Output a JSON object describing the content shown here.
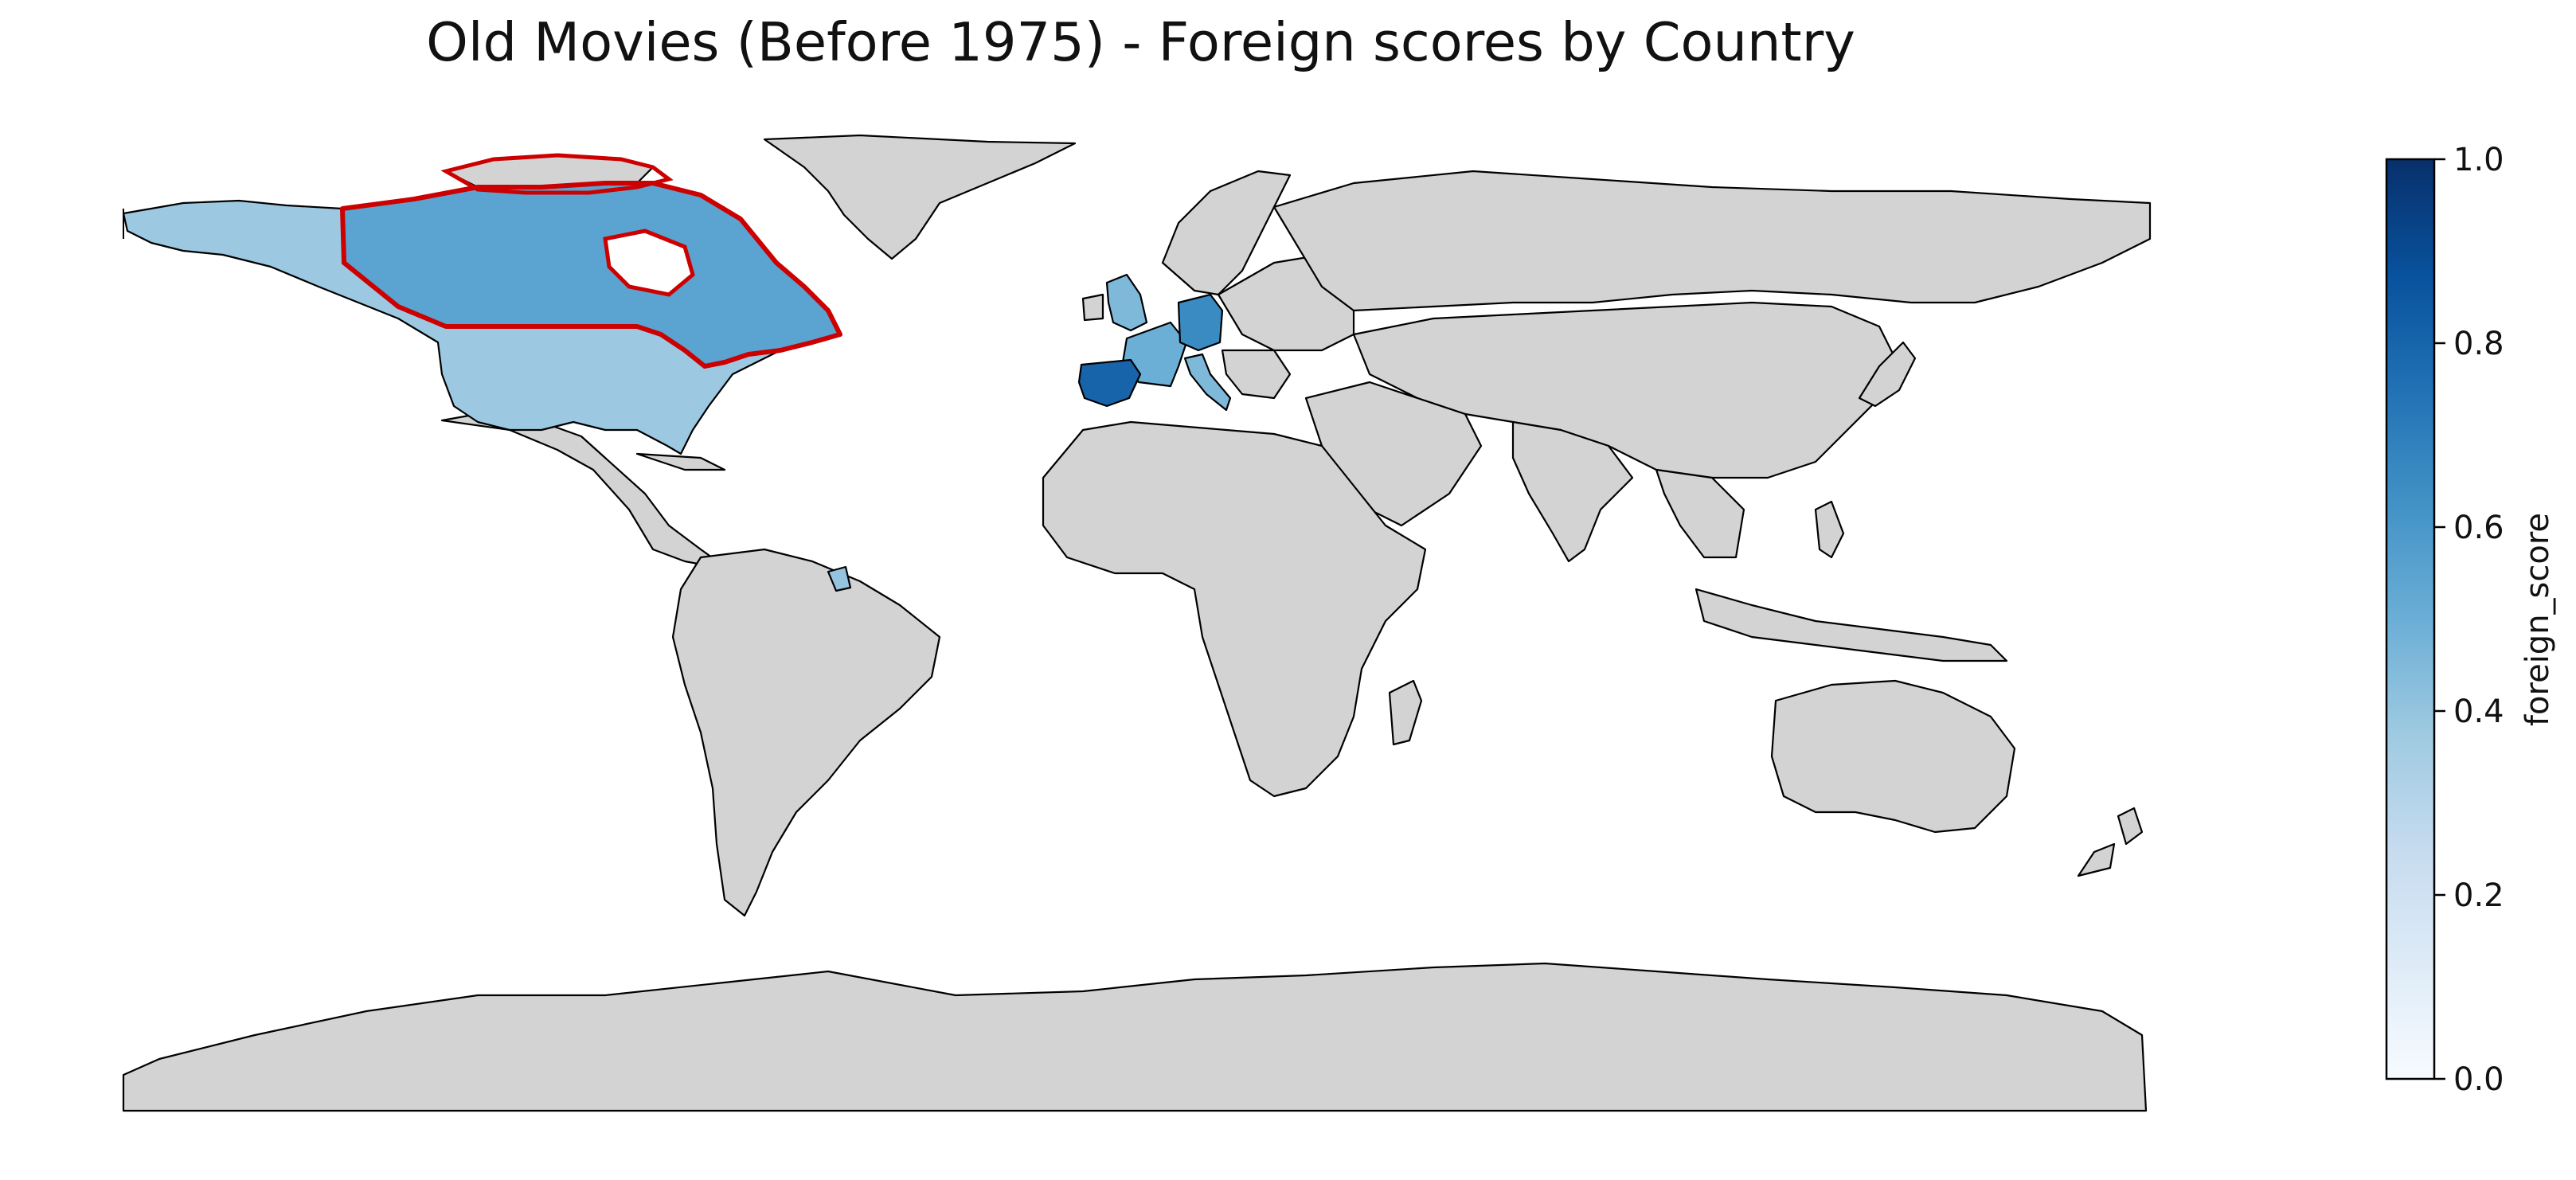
{
  "title": "Old Movies (Before 1975) - Foreign scores by Country",
  "colorbar": {
    "label": "foreign_score",
    "min": 0.0,
    "max": 1.0,
    "ticks": [
      "0.0",
      "0.2",
      "0.4",
      "0.6",
      "0.8",
      "1.0"
    ],
    "colormap": [
      "#f7fbff",
      "#deebf7",
      "#c6dbef",
      "#9ecae1",
      "#6baed6",
      "#4292c6",
      "#2171b5",
      "#08519c",
      "#08306b"
    ]
  },
  "colors": {
    "no_data": "#d3d3d3",
    "border": "#000000",
    "highlight": "#cc0000",
    "ocean": "#ffffff"
  },
  "chart_data": {
    "type": "choropleth",
    "title": "Old Movies (Before 1975) - Foreign scores by Country",
    "colorbar_label": "foreign_score",
    "value_range": [
      0.0,
      1.0
    ],
    "highlighted_country": "Canada",
    "countries": [
      {
        "name": "United States",
        "foreign_score": 0.38
      },
      {
        "name": "Canada",
        "foreign_score": 0.55
      },
      {
        "name": "United Kingdom",
        "foreign_score": 0.45
      },
      {
        "name": "France",
        "foreign_score": 0.5
      },
      {
        "name": "Germany",
        "foreign_score": 0.65
      },
      {
        "name": "Spain",
        "foreign_score": 0.8
      },
      {
        "name": "Italy",
        "foreign_score": 0.45
      },
      {
        "name": "French Guiana",
        "foreign_score": 0.4
      }
    ]
  }
}
